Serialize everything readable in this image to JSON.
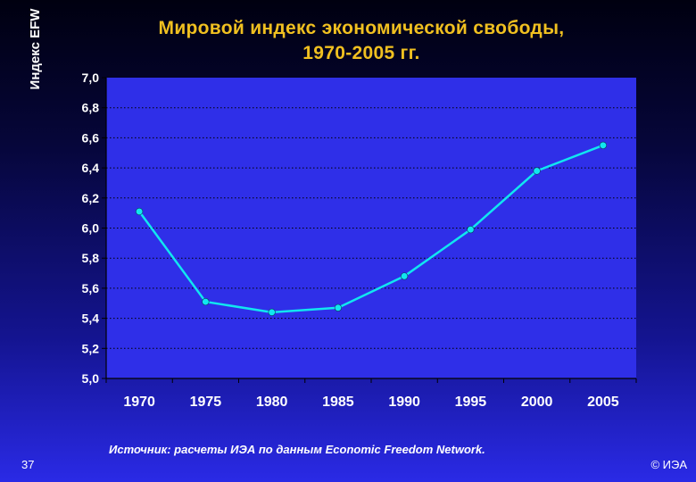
{
  "slide": {
    "number": "37",
    "copyright": "© ИЭА",
    "source": "Источник: расчеты ИЭА по данным Economic Freedom Network."
  },
  "colors": {
    "background_top": "#000010",
    "background_bottom": "#2a2ae6",
    "title": "#f0c020",
    "plot_area": "#2f2fe8",
    "line": "#11e6f0",
    "text": "#ffffff"
  },
  "chart_data": {
    "type": "line",
    "title_lines": [
      "Мировой индекс экономической свободы,",
      "1970-2005 гг."
    ],
    "ylabel": "Индекс EFW",
    "xlabel": "",
    "categories": [
      "1970",
      "1975",
      "1980",
      "1985",
      "1990",
      "1995",
      "2000",
      "2005"
    ],
    "series": [
      {
        "values": [
          6.11,
          5.51,
          5.44,
          5.47,
          5.68,
          5.99,
          6.38,
          6.55
        ]
      }
    ],
    "ylim": [
      5.0,
      7.0
    ],
    "yticks": [
      "5,0",
      "5,2",
      "5,4",
      "5,6",
      "5,8",
      "6,0",
      "6,2",
      "6,4",
      "6,6",
      "6,8",
      "7,0"
    ],
    "ytick_values": [
      5.0,
      5.2,
      5.4,
      5.6,
      5.8,
      6.0,
      6.2,
      6.4,
      6.6,
      6.8,
      7.0
    ],
    "grid": true,
    "legend": "none"
  }
}
